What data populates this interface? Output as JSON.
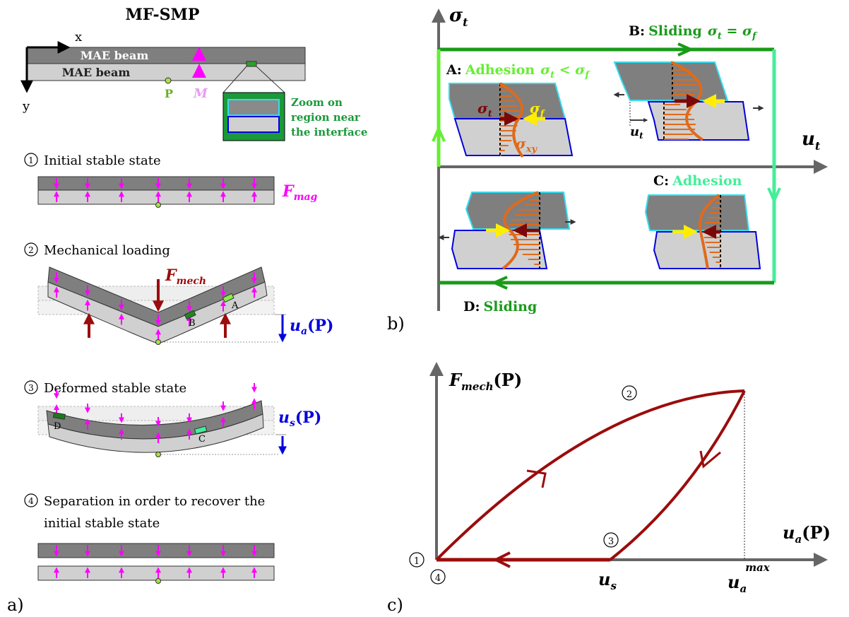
{
  "panel_a": {
    "title": "MF-SMP",
    "axis_x": "x",
    "axis_y": "y",
    "beam_top_label": "MAE beam",
    "beam_bottom_label": "MAE beam",
    "point_label": "P",
    "magnet_label": "M",
    "zoom_lines": [
      "Zoom on",
      "region near",
      "the interface"
    ],
    "steps": [
      {
        "num": "1",
        "text": "Initial stable state"
      },
      {
        "num": "2",
        "text": "Mechanical loading"
      },
      {
        "num": "3",
        "text": "Deformed stable state"
      },
      {
        "num": "4",
        "text_line1": "Separation in order to recover the",
        "text_line2": "initial stable state"
      }
    ],
    "fmag": "F",
    "fmag_sub": "mag",
    "fmech": "F",
    "fmech_sub": "mech",
    "ua": "u",
    "ua_sub": "a",
    "ua_p": "(P)",
    "us": "u",
    "us_sub": "s",
    "us_p": "(P)",
    "patch_labels": {
      "A": "A",
      "B": "B",
      "C": "C",
      "D": "D"
    },
    "caption": "a)"
  },
  "panel_b": {
    "axis_y": "σ",
    "axis_y_sub": "t",
    "axis_x": "u",
    "axis_x_sub": "t",
    "label_A_prefix": "A:",
    "label_A_text": "Adhesion",
    "label_A_cond": "σ",
    "label_A_cond_sub": "t",
    "label_A_cond_op": " < σ",
    "label_A_cond_sub2": "f",
    "label_B_prefix": "B:",
    "label_B_text": "Sliding",
    "label_B_cond": "σ",
    "label_B_cond_sub": "t",
    "label_B_cond_op": " = σ",
    "label_B_cond_sub2": "f",
    "label_C_prefix": "C:",
    "label_C_text": "Adhesion",
    "label_D_prefix": "D:",
    "label_D_text": "Sliding",
    "sigma_t": "σ",
    "sigma_t_sub": "t",
    "sigma_f": "σ",
    "sigma_f_sub": "f",
    "sigma_xy": "σ",
    "sigma_xy_sub": "xy",
    "ut": "u",
    "ut_sub": "t",
    "caption": "b)"
  },
  "panel_c": {
    "axis_y": "F",
    "axis_y_sub": "mech",
    "axis_y_p": "(P)",
    "axis_x": "u",
    "axis_x_sub": "a",
    "axis_x_p": "(P)",
    "us": "u",
    "us_sub": "s",
    "umax": "u",
    "umax_sub": "a",
    "umax_sup": "max",
    "state_1": "1",
    "state_2": "2",
    "state_3": "3",
    "state_4": "4",
    "caption": "c)"
  },
  "colors": {
    "beam_dark": "#7f7f7f",
    "beam_light": "#d0d0d0",
    "magenta": "#ff00ff",
    "dark_red": "#9b0c0c",
    "blue": "#0000dd",
    "green": "#1a9a1a",
    "light_green": "#66ee33",
    "mint": "#44ee99",
    "orange": "#e06a1a",
    "yellow": "#ffee00",
    "cyan": "#33ddee"
  }
}
